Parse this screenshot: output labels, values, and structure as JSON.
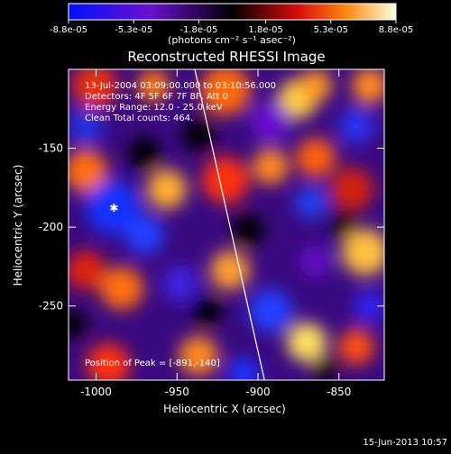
{
  "chart_data": {
    "type": "heatmap",
    "title": "Reconstructed RHESSI Image",
    "xlabel": "Heliocentric X (arcsec)",
    "ylabel": "Heliocentric Y (arcsec)",
    "xlim": [
      -1017,
      -822
    ],
    "ylim": [
      -297,
      -100
    ],
    "x_ticks": [
      -1000,
      -950,
      -900,
      -850
    ],
    "y_ticks": [
      -150,
      -200,
      -250
    ],
    "x_tick_labels": [
      "-1000",
      "-950",
      "-900",
      "-850"
    ],
    "y_tick_labels": [
      "-150",
      "-200",
      "-250"
    ],
    "colorbar": {
      "min": -8.8e-05,
      "max": 8.8e-05,
      "tick_values": [
        -8.8e-05,
        -5.3e-05,
        -1.8e-05,
        1.8e-05,
        5.3e-05,
        8.8e-05
      ],
      "tick_labels": [
        "-8.8e-05",
        "-5.3e-05",
        "-1.8e-05",
        "1.8e-05",
        "5.3e-05",
        "8.8e-05"
      ],
      "unit_label": "(photons cm⁻² s⁻¹ asec⁻²)"
    },
    "annotations": [
      "13-Jul-2004 03:09:00.000 to 03:10:56.000",
      "Detectors: 4F 5F 6F 7F 8F, Att 0",
      "Energy Range: 12.0 - 25.0 keV",
      "Clean     Total counts: 464."
    ],
    "peak_label": "Position of Peak = [-891,-140]",
    "peak": {
      "x": -891,
      "y": -140
    },
    "limb_line": [
      [
        -939,
        -100
      ],
      [
        -896,
        -297
      ]
    ],
    "marker": {
      "x": -989,
      "y": -188
    },
    "colors": [
      "#0000ff",
      "#5000c0",
      "#000000",
      "#d01010",
      "#ff8000",
      "#ffff90"
    ]
  },
  "timestamp": "15-Jun-2013 10:57"
}
